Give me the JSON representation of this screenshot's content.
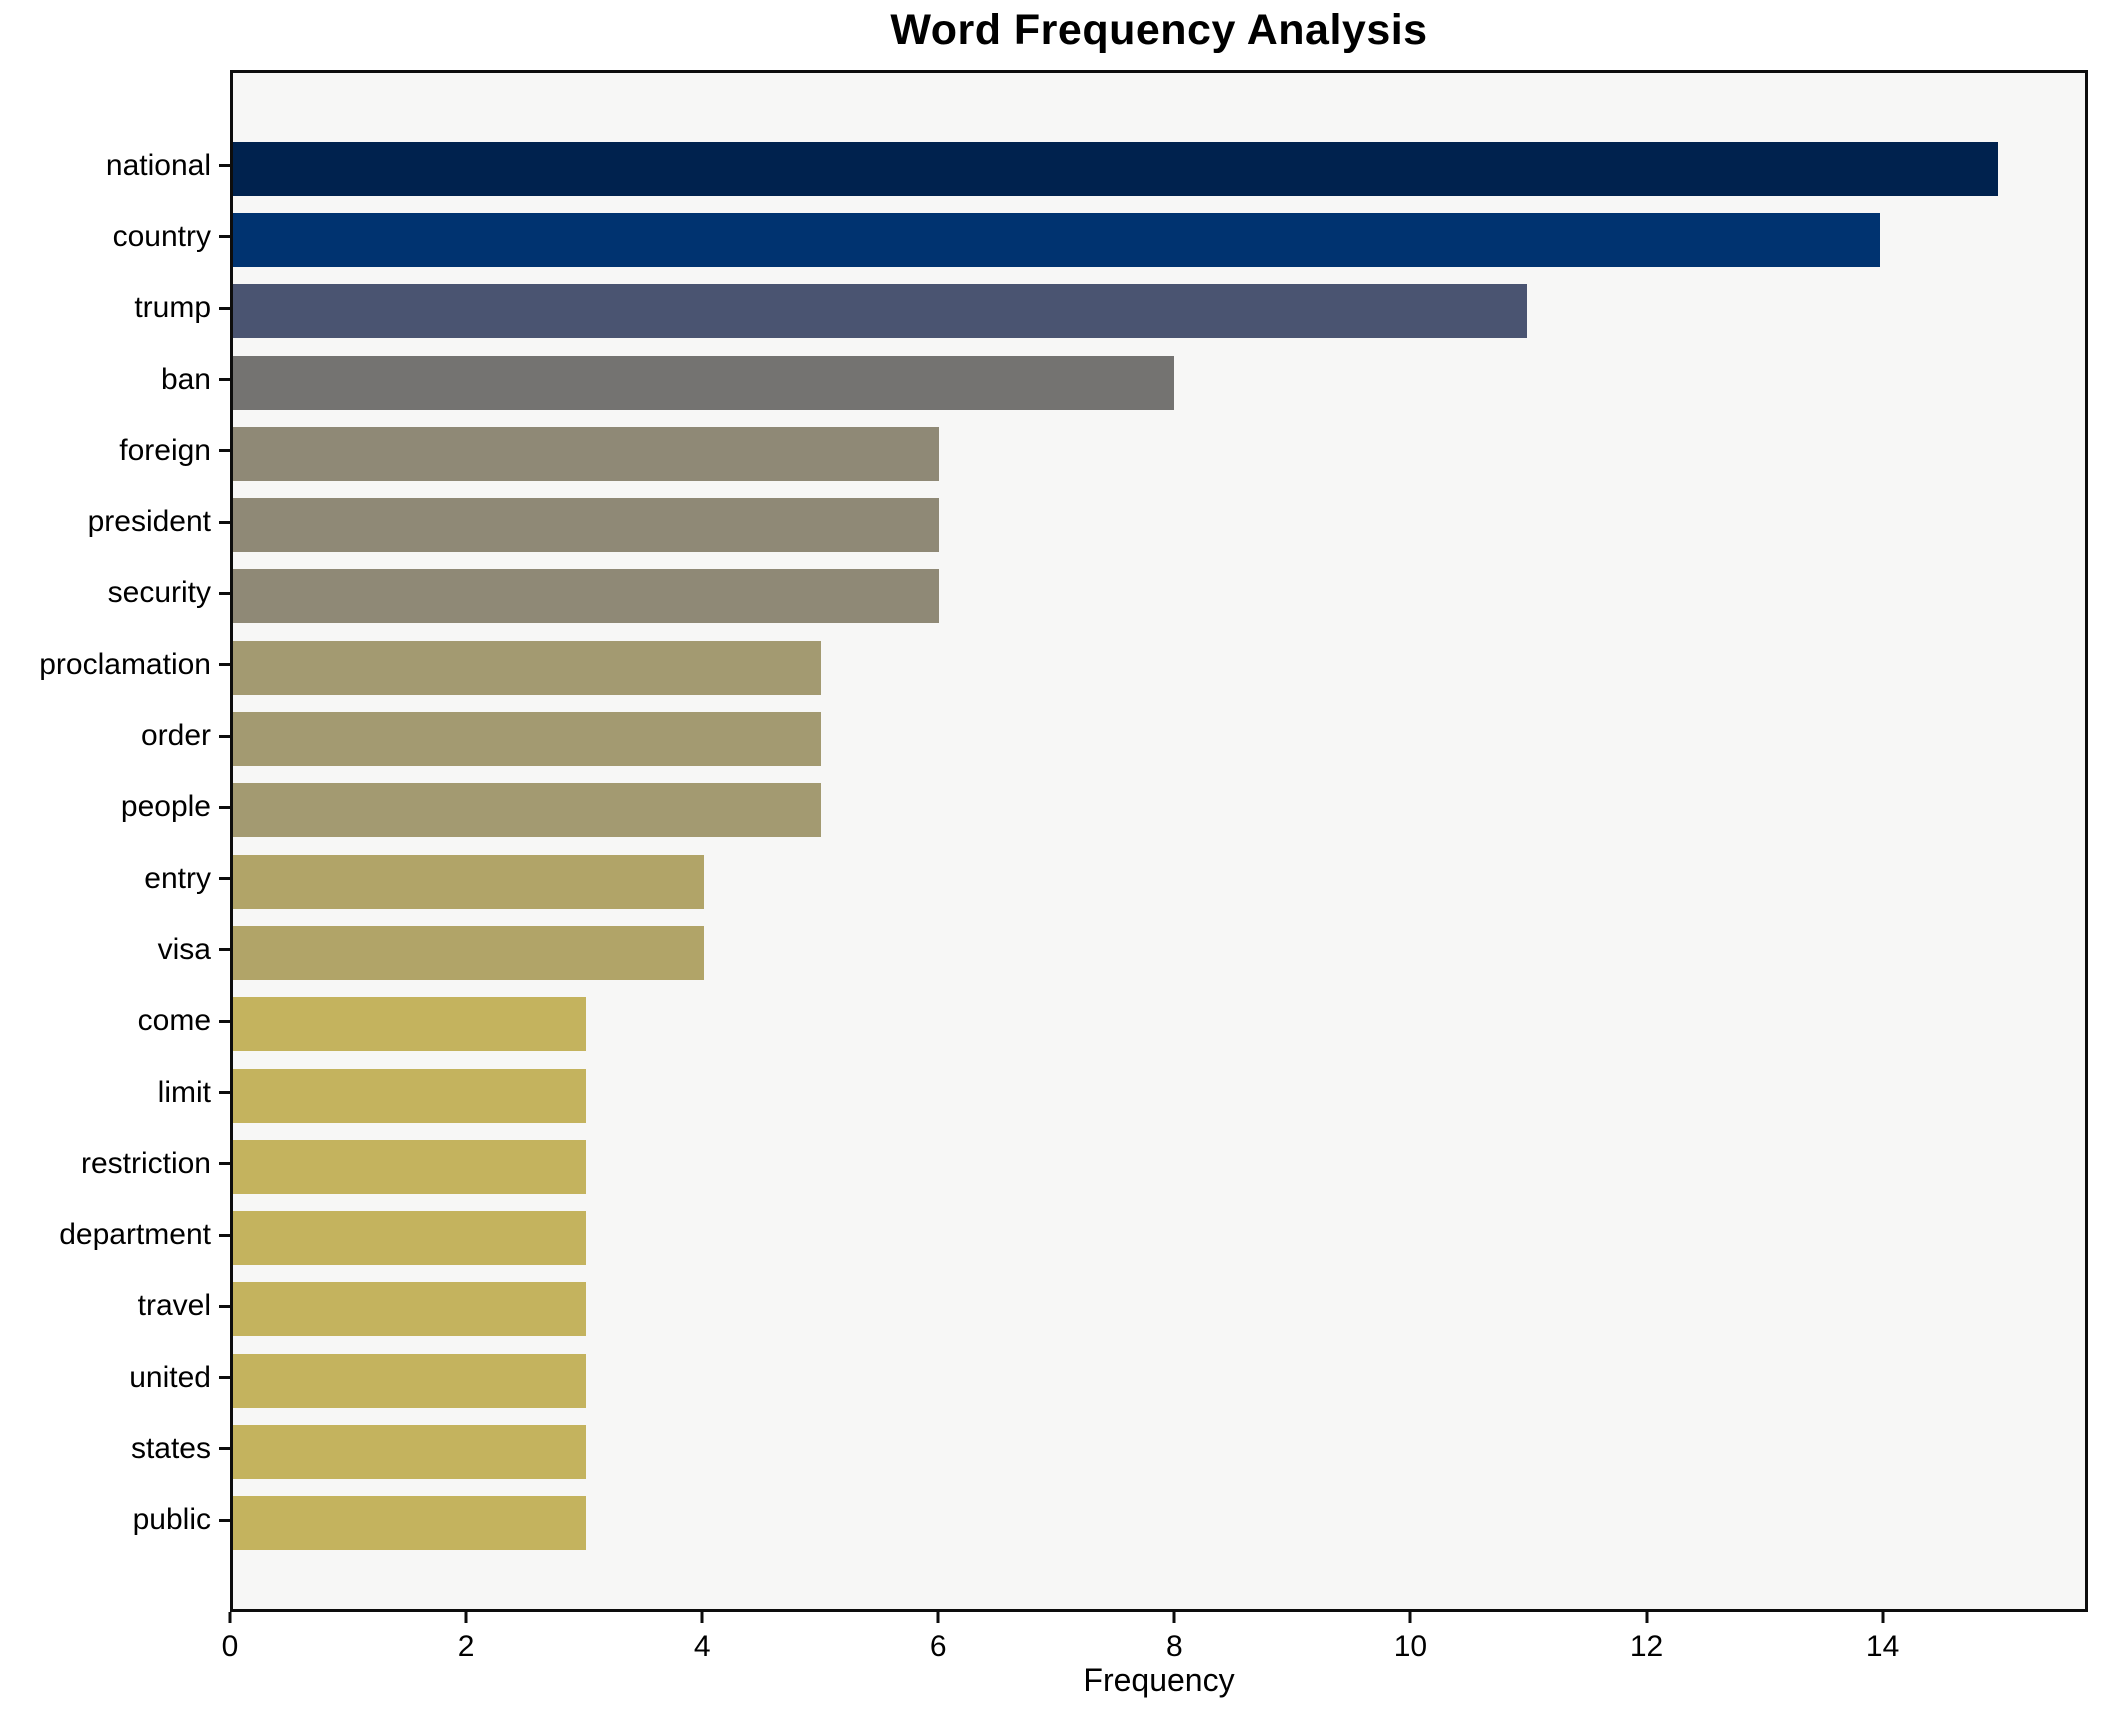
{
  "title": "Word Frequency Analysis",
  "chart_data": {
    "type": "bar",
    "orientation": "horizontal",
    "title": "Word Frequency Analysis",
    "xlabel": "Frequency",
    "ylabel": "",
    "categories": [
      "national",
      "country",
      "trump",
      "ban",
      "foreign",
      "president",
      "security",
      "proclamation",
      "order",
      "people",
      "entry",
      "visa",
      "come",
      "limit",
      "restriction",
      "department",
      "travel",
      "united",
      "states",
      "public"
    ],
    "values": [
      15,
      14,
      11,
      8,
      6,
      6,
      6,
      5,
      5,
      5,
      4,
      4,
      3,
      3,
      3,
      3,
      3,
      3,
      3,
      3
    ],
    "bar_colors": [
      "#00224e",
      "#003370",
      "#4a5471",
      "#747371",
      "#8f8976",
      "#8f8976",
      "#8f8976",
      "#a39a71",
      "#a39a71",
      "#a39a71",
      "#b1a468",
      "#b1a468",
      "#c4b35e",
      "#c4b35e",
      "#c4b35e",
      "#c4b35e",
      "#c4b35e",
      "#c4b35e",
      "#c4b35e",
      "#c4b35e"
    ],
    "xlim": [
      0,
      15.74
    ],
    "x_ticks": [
      0,
      2,
      4,
      6,
      8,
      10,
      12,
      14
    ],
    "grid": false,
    "legend": "none",
    "plot_background": "#f7f7f6",
    "figure_background": "#ffffff",
    "axis_color": "#0d0d0d"
  }
}
